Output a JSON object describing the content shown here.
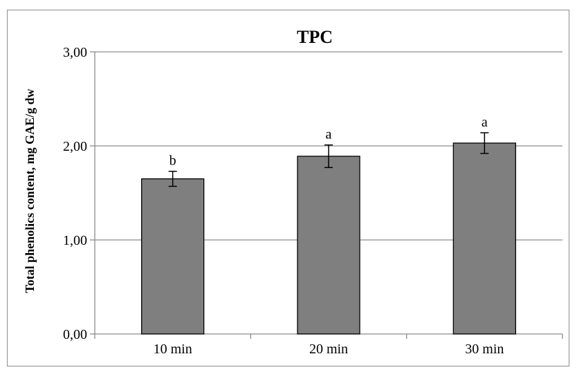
{
  "chart_data": {
    "type": "bar",
    "title": "TPC",
    "xlabel": "",
    "ylabel": "Total phenolics content, mg GAE/g dw",
    "categories": [
      "10 min",
      "20 min",
      "30 min"
    ],
    "values": [
      1.65,
      1.89,
      2.03
    ],
    "error": [
      0.08,
      0.12,
      0.11
    ],
    "significance_letters": [
      "b",
      "a",
      "a"
    ],
    "ylim": [
      0,
      3
    ],
    "yticks": [
      "0,00",
      "1,00",
      "2,00",
      "3,00"
    ],
    "grid": true,
    "legend": "none",
    "colors": {
      "bar": "#7f7f7f",
      "bar_edge": "#000000",
      "grid": "#8c8c8c"
    }
  }
}
